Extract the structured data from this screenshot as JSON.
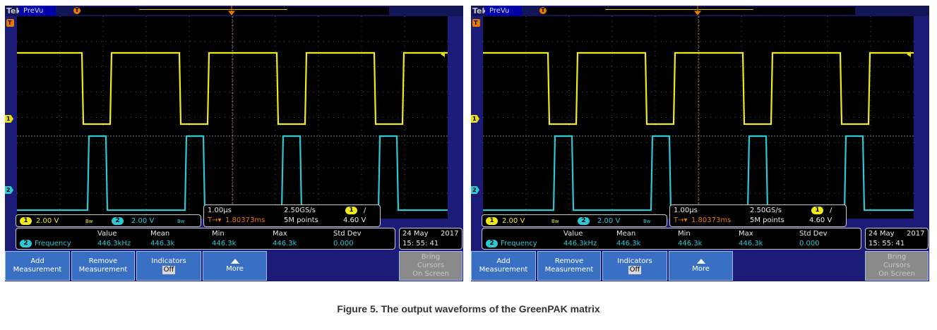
{
  "figure_caption": "Figure 5. The output waveforms of the GreenPAK matrix",
  "screens": [
    {
      "brand": "Tek",
      "acq_state": "PreVu",
      "ch1_scale": "2.00 V",
      "ch2_scale": "2.00 V",
      "ch_bw_glyph": "Bw",
      "timebase": "1.00µs",
      "trigger_pos": "1.80373ms",
      "sample_rate": "2.50GS/s",
      "record_length": "5M points",
      "trigger_level": "4.60 V",
      "trigger_slope": "/",
      "meas_headers": [
        "Value",
        "Mean",
        "Min",
        "Max",
        "Std Dev"
      ],
      "meas_name": "Frequency",
      "meas_values": [
        "446.3kHz",
        "446.3k",
        "446.3k",
        "446.3k",
        "0.000"
      ],
      "date": "24 May",
      "year": "2017",
      "time": "15: 55: 41",
      "buttons": {
        "add_1": "Add",
        "add_2": "Measurement",
        "remove_1": "Remove",
        "remove_2": "Measurement",
        "ind_1": "Indicators",
        "ind_2": "Off",
        "more": "More",
        "bring_1": "Bring",
        "bring_2": "Cursors",
        "bring_3": "On Screen"
      }
    },
    {
      "brand": "Tek",
      "acq_state": "PreVu",
      "ch1_scale": "2.00 V",
      "ch2_scale": "2.00 V",
      "ch_bw_glyph": "Bw",
      "timebase": "1.00µs",
      "trigger_pos": "1.80373ms",
      "sample_rate": "2.50GS/s",
      "record_length": "5M points",
      "trigger_level": "4.60 V",
      "trigger_slope": "/",
      "meas_headers": [
        "Value",
        "Mean",
        "Min",
        "Max",
        "Std Dev"
      ],
      "meas_name": "Frequency",
      "meas_values": [
        "446.3kHz",
        "446.3k",
        "446.3k",
        "446.3k",
        "0.000"
      ],
      "date": "24 May",
      "year": "2017",
      "time": "15: 55: 41",
      "buttons": {
        "add_1": "Add",
        "add_2": "Measurement",
        "remove_1": "Remove",
        "remove_2": "Measurement",
        "ind_1": "Indicators",
        "ind_2": "Off",
        "more": "More",
        "bring_1": "Bring",
        "bring_2": "Cursors",
        "bring_3": "On Screen"
      }
    }
  ],
  "colors": {
    "ch1": "#f0ea1a",
    "ch2": "#2ac8d4",
    "trigger": "#e67a00",
    "bezel": "#1c1c78",
    "button": "#3a70c4"
  },
  "icons": [
    "trigger-marker-icon",
    "ch1-marker-icon",
    "ch2-marker-icon",
    "more-caret-icon"
  ]
}
